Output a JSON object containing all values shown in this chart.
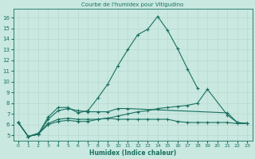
{
  "title": "Courbe de l'humidex pour Vitigudino",
  "xlabel": "Humidex (Indice chaleur)",
  "xlim": [
    -0.5,
    23.5
  ],
  "ylim": [
    4.5,
    16.8
  ],
  "yticks": [
    5,
    6,
    7,
    8,
    9,
    10,
    11,
    12,
    13,
    14,
    15,
    16
  ],
  "xticks": [
    0,
    1,
    2,
    3,
    4,
    5,
    6,
    7,
    8,
    9,
    10,
    11,
    12,
    13,
    14,
    15,
    16,
    17,
    18,
    19,
    20,
    21,
    22,
    23
  ],
  "bg_color": "#c8e8e0",
  "grid_color": "#b8d8d0",
  "line_color": "#1a7060",
  "lines": [
    {
      "x": [
        0,
        1,
        2,
        3,
        4,
        5,
        6,
        7,
        8,
        9,
        10,
        11,
        12,
        13,
        14,
        15,
        16,
        17,
        18
      ],
      "y": [
        6.2,
        4.9,
        5.1,
        6.7,
        7.6,
        7.6,
        7.1,
        7.3,
        8.5,
        9.8,
        11.5,
        13.0,
        14.4,
        14.9,
        16.1,
        14.8,
        13.1,
        11.2,
        9.4
      ]
    },
    {
      "x": [
        0,
        1,
        2,
        3,
        4,
        5,
        6,
        7,
        8,
        9,
        10,
        11,
        21,
        22,
        23
      ],
      "y": [
        6.2,
        4.9,
        5.1,
        6.5,
        7.3,
        7.5,
        7.3,
        7.2,
        7.2,
        7.2,
        7.5,
        7.5,
        7.1,
        6.2,
        6.1
      ]
    },
    {
      "x": [
        0,
        1,
        2,
        3,
        4,
        5,
        6,
        7,
        8,
        9,
        10,
        11,
        12,
        13,
        14,
        15,
        16,
        17,
        18,
        19,
        20,
        21,
        22,
        23
      ],
      "y": [
        6.2,
        4.9,
        5.2,
        6.1,
        6.5,
        6.6,
        6.5,
        6.5,
        6.5,
        6.6,
        6.5,
        6.5,
        6.5,
        6.5,
        6.5,
        6.5,
        6.3,
        6.2,
        6.2,
        6.2,
        6.2,
        6.2,
        6.1,
        6.1
      ]
    },
    {
      "x": [
        0,
        1,
        2,
        3,
        4,
        5,
        6,
        7,
        8,
        9,
        10,
        11,
        12,
        13,
        14,
        15,
        16,
        17,
        18,
        19,
        21,
        22,
        23
      ],
      "y": [
        6.2,
        4.9,
        5.1,
        6.0,
        6.3,
        6.4,
        6.3,
        6.3,
        6.5,
        6.6,
        6.8,
        7.0,
        7.2,
        7.3,
        7.5,
        7.6,
        7.7,
        7.8,
        8.0,
        9.3,
        6.9,
        6.2,
        6.1
      ]
    }
  ]
}
